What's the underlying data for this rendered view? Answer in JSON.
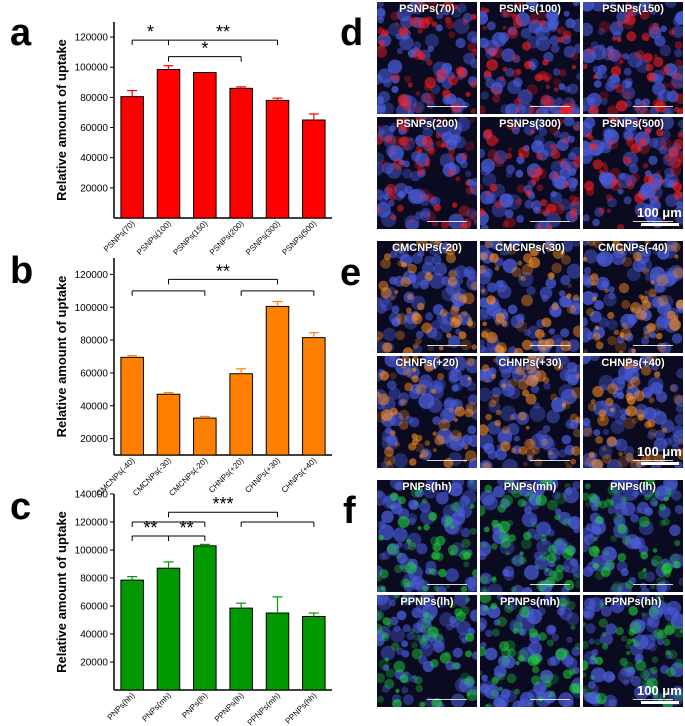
{
  "panels": {
    "a": "a",
    "b": "b",
    "c": "c",
    "d": "d",
    "e": "e",
    "f": "f"
  },
  "chart_data": [
    {
      "type": "bar",
      "panel": "a",
      "ylabel": "Relative amount of uptake",
      "categories": [
        "PSNPs(70)",
        "PSNPs(100)",
        "PSNPs(150)",
        "PSNPs(200)",
        "PSNPs(300)",
        "PSNPs(500)"
      ],
      "values": [
        80500,
        98500,
        96500,
        86000,
        78000,
        65000
      ],
      "errors": [
        4000,
        2500,
        0,
        1000,
        1500,
        4000
      ],
      "ylim": [
        0,
        130000
      ],
      "yticks": [
        20000,
        40000,
        60000,
        80000,
        100000,
        120000
      ],
      "ytick_labels": [
        "20000",
        "40000",
        "60000",
        "80000",
        "100000",
        "120000"
      ],
      "color": "#ff0000",
      "significance": [
        {
          "label": "*",
          "from": 0,
          "to": 1,
          "level": 118000
        },
        {
          "label": "*",
          "from": 1,
          "to": 3,
          "level": 107000
        },
        {
          "label": "**",
          "from": 1,
          "to": 4,
          "level": 118000
        }
      ]
    },
    {
      "type": "bar",
      "panel": "b",
      "ylabel": "Relative amount of uptake",
      "categories": [
        "CMCNPs(-40)",
        "CMCNPs(-30)",
        "CMCNPs(-20)",
        "CHNPs(+20)",
        "CHNPs(+30)",
        "CHNPs(+40)"
      ],
      "values": [
        69500,
        47000,
        32500,
        59500,
        100500,
        81500
      ],
      "errors": [
        1000,
        1000,
        1000,
        3000,
        3000,
        3000
      ],
      "ylim": [
        10000,
        130000
      ],
      "yticks": [
        20000,
        40000,
        60000,
        80000,
        100000,
        120000
      ],
      "ytick_labels": [
        "20000",
        "40000",
        "60000",
        "80000",
        "100000",
        "120000"
      ],
      "color": "#ff8000",
      "significance": [
        {
          "label": "",
          "from": 0,
          "to": 2,
          "level": 110000
        },
        {
          "label": "**",
          "from": 1,
          "to": 4,
          "level": 117000
        },
        {
          "label": "",
          "from": 3,
          "to": 5,
          "level": 110000
        }
      ]
    },
    {
      "type": "bar",
      "panel": "c",
      "ylabel": "Relative amount of uptake",
      "categories": [
        "PNPs(hh)",
        "PNPs(mh)",
        "PNPs(lh)",
        "PPNPs(lh)",
        "PPNPs(mh)",
        "PPNPs(hh)"
      ],
      "values": [
        78500,
        87000,
        103000,
        58500,
        55000,
        52500
      ],
      "errors": [
        2500,
        4500,
        1000,
        3500,
        11500,
        2500
      ],
      "ylim": [
        0,
        140000
      ],
      "yticks": [
        20000,
        40000,
        60000,
        80000,
        100000,
        120000,
        140000
      ],
      "ytick_labels": [
        "20000",
        "40000",
        "60000",
        "80000",
        "100000",
        "120000",
        "140000"
      ],
      "color": "#009900",
      "significance": [
        {
          "label": "**",
          "from": 0,
          "to": 1,
          "level": 110000
        },
        {
          "label": "**",
          "from": 1,
          "to": 2,
          "level": 110000
        },
        {
          "label": "***",
          "from": 1,
          "to": 4,
          "level": 127000
        },
        {
          "label": "",
          "from": 0,
          "to": 2,
          "level": 120000
        },
        {
          "label": "",
          "from": 3,
          "to": 5,
          "level": 120000
        }
      ]
    }
  ],
  "micrographs": {
    "d": {
      "titles": [
        "PSNPs(70)",
        "PSNPs(100)",
        "PSNPs(150)",
        "PSNPs(200)",
        "PSNPs(300)",
        "PSNPs(500)"
      ],
      "fluor_color": "#ff2020",
      "scale_label": "100 μm"
    },
    "e": {
      "titles": [
        "CMCNPs(-20)",
        "CMCNPs(-30)",
        "CMCNPs(-40)",
        "CHNPs(+20)",
        "CHNPs(+30)",
        "CHNPs(+40)"
      ],
      "fluor_color": "#ff9020",
      "scale_label": "100 μm"
    },
    "f": {
      "titles": [
        "PNPs(hh)",
        "PNPs(mh)",
        "PNPs(lh)",
        "PPNPs(lh)",
        "PPNPs(mh)",
        "PPNPs(hh)"
      ],
      "fluor_color": "#20d040",
      "scale_label": "100 μm"
    }
  }
}
